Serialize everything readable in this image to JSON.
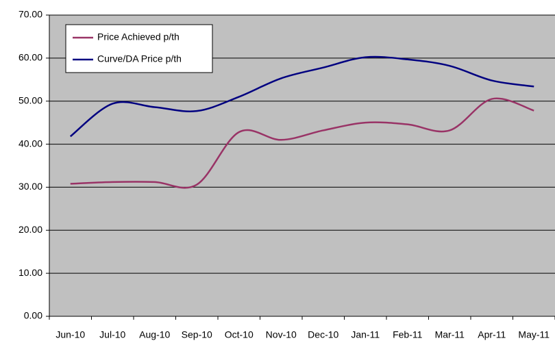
{
  "chart_data": {
    "type": "line",
    "categories": [
      "Jun-10",
      "Jul-10",
      "Aug-10",
      "Sep-10",
      "Oct-10",
      "Nov-10",
      "Dec-10",
      "Jan-11",
      "Feb-11",
      "Mar-11",
      "Apr-11",
      "May-11"
    ],
    "series": [
      {
        "name": "Price Achieved p/th",
        "color": "#993366",
        "values": [
          30.8,
          31.2,
          31.2,
          30.6,
          42.8,
          41.0,
          43.2,
          45.0,
          44.6,
          43.2,
          50.5,
          47.8
        ]
      },
      {
        "name": "Curve/DA Price p/th",
        "color": "#000080",
        "values": [
          41.8,
          49.4,
          48.6,
          47.7,
          51.0,
          55.3,
          57.8,
          60.2,
          59.7,
          58.2,
          54.8,
          53.4
        ]
      }
    ],
    "ylim": [
      0,
      70
    ],
    "yticks": [
      {
        "value": 0,
        "label": "0.00"
      },
      {
        "value": 10,
        "label": "10.00"
      },
      {
        "value": 20,
        "label": "20.00"
      },
      {
        "value": 30,
        "label": "30.00"
      },
      {
        "value": 40,
        "label": "40.00"
      },
      {
        "value": 50,
        "label": "50.00"
      },
      {
        "value": 60,
        "label": "60.00"
      },
      {
        "value": 70,
        "label": "70.00"
      }
    ],
    "grid": true,
    "smooth": true,
    "legend": "upper left"
  }
}
